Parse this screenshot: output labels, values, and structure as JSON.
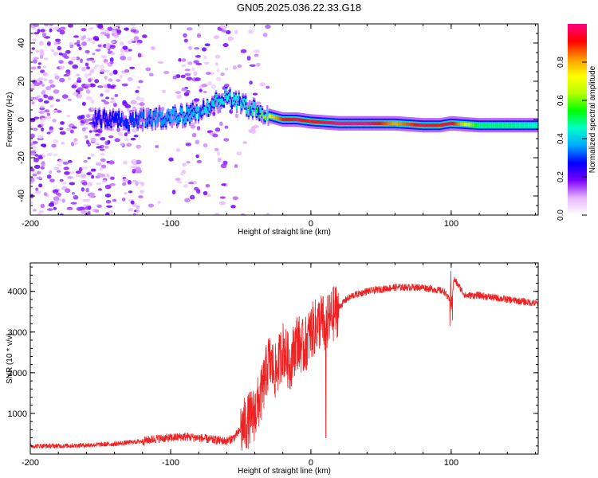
{
  "title": "GN05.2025.036.22.33.G18",
  "chart_data": [
    {
      "type": "heatmap",
      "title": "GN05.2025.036.22.33.G18",
      "xlabel": "Height of straight line (km)",
      "ylabel": "Frequency (Hz)",
      "xlim": [
        -200,
        162
      ],
      "ylim": [
        -50,
        50
      ],
      "x_ticks": [
        -200,
        -100,
        0,
        100
      ],
      "y_ticks": [
        -40,
        -20,
        0,
        20,
        40
      ],
      "colorbar": {
        "label": "Normalized spectral amplitude",
        "range": [
          0,
          1
        ],
        "ticks": [
          "0.0",
          "0.2",
          "0.4",
          "0.6",
          "0.8"
        ],
        "colors": [
          "#ffffff",
          "#e6b4ff",
          "#7a00ff",
          "#0000ff",
          "#00a8ff",
          "#00ffc8",
          "#00ff00",
          "#b4ff00",
          "#ffff00",
          "#ff9600",
          "#ff0000",
          "#ff0080"
        ]
      },
      "ridge": [
        {
          "x": -150,
          "freq": 0,
          "amp": 0.25
        },
        {
          "x": -130,
          "freq": -1,
          "amp": 0.3
        },
        {
          "x": -110,
          "freq": 1,
          "amp": 0.35
        },
        {
          "x": -90,
          "freq": 2,
          "amp": 0.38
        },
        {
          "x": -75,
          "freq": 6,
          "amp": 0.42
        },
        {
          "x": -60,
          "freq": 12,
          "amp": 0.45
        },
        {
          "x": -50,
          "freq": 8,
          "amp": 0.45
        },
        {
          "x": -40,
          "freq": 5,
          "amp": 0.5
        },
        {
          "x": -30,
          "freq": 2,
          "amp": 0.7
        },
        {
          "x": -20,
          "freq": 0,
          "amp": 0.9
        },
        {
          "x": -10,
          "freq": 0,
          "amp": 0.95
        },
        {
          "x": 0,
          "freq": -1,
          "amp": 0.9
        },
        {
          "x": 20,
          "freq": -2,
          "amp": 1.0
        },
        {
          "x": 40,
          "freq": -2,
          "amp": 1.0
        },
        {
          "x": 60,
          "freq": -2,
          "amp": 0.8
        },
        {
          "x": 80,
          "freq": -3,
          "amp": 0.95
        },
        {
          "x": 92,
          "freq": -3,
          "amp": 0.9
        },
        {
          "x": 100,
          "freq": -2,
          "amp": 0.95
        },
        {
          "x": 120,
          "freq": -3,
          "amp": 0.5
        },
        {
          "x": 140,
          "freq": -3,
          "amp": 0.5
        },
        {
          "x": 162,
          "freq": -3,
          "amp": 0.45
        }
      ]
    },
    {
      "type": "line",
      "xlabel": "Height of straight line (km)",
      "ylabel": "SNR (10 * v/v)",
      "xlim": [
        -200,
        162
      ],
      "ylim": [
        0,
        4700
      ],
      "x_ticks": [
        -200,
        -100,
        0,
        100
      ],
      "y_ticks": [
        1000,
        2000,
        3000,
        4000
      ],
      "color": "#ee2222",
      "series": [
        {
          "x": [
            -200,
            -180,
            -160,
            -140,
            -120,
            -110,
            -100,
            -90,
            -80,
            -70,
            -60,
            -55,
            -50,
            -45,
            -40,
            -35,
            -30,
            -25,
            -20,
            -15,
            -10,
            -5,
            0,
            5,
            8,
            10,
            15,
            20,
            25,
            30,
            40,
            60,
            80,
            95,
            100,
            102,
            110,
            120,
            140,
            162
          ],
          "y": [
            200,
            200,
            220,
            250,
            320,
            380,
            400,
            430,
            400,
            350,
            320,
            400,
            600,
            800,
            1000,
            1500,
            2300,
            2000,
            2600,
            2200,
            2800,
            2600,
            3000,
            3200,
            3300,
            3100,
            3400,
            3600,
            3800,
            3900,
            4000,
            4100,
            4100,
            4000,
            3700,
            4300,
            3900,
            3900,
            3800,
            3700
          ]
        }
      ]
    }
  ]
}
